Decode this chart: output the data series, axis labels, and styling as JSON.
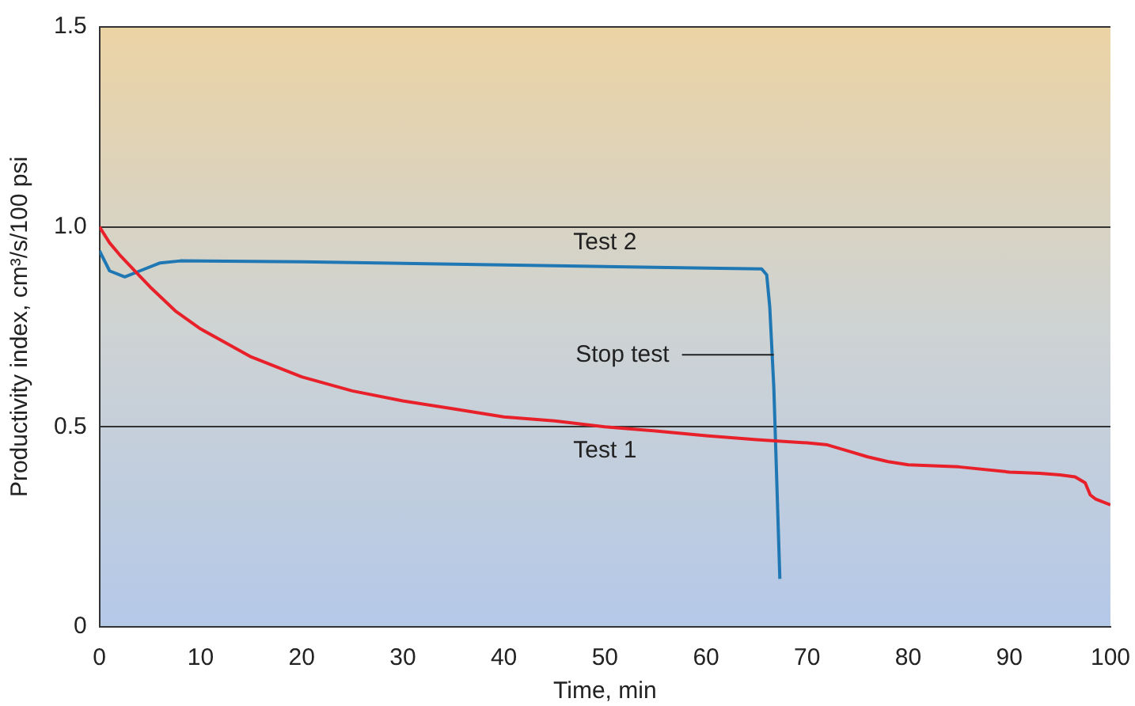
{
  "chart_data": {
    "type": "line",
    "xlabel": "Time, min",
    "ylabel": "Productivity index, cm³/s/100 psi",
    "xlim": [
      0,
      100
    ],
    "xticks": [
      0,
      10,
      20,
      30,
      40,
      50,
      60,
      70,
      80,
      90,
      100
    ],
    "ylim": [
      0,
      1.5
    ],
    "yticks": [
      0,
      {
        "value": 0.5,
        "label": "0.5"
      },
      {
        "value": 1,
        "label": "1.0"
      },
      {
        "value": 1.5,
        "label": "1.5"
      }
    ],
    "grid": "y",
    "legend": false,
    "marker": "none",
    "line_style": "solid",
    "series": [
      {
        "name": "Test 1",
        "color": "#e8202a",
        "x": [
          0,
          1,
          2,
          3.5,
          5,
          7.5,
          10,
          12.5,
          15,
          20,
          25,
          30,
          35,
          40,
          45,
          50,
          55,
          60,
          65,
          68,
          70,
          72,
          74,
          76,
          78,
          80,
          85,
          90,
          93,
          95,
          96.5,
          97.5,
          98,
          98.5,
          100
        ],
        "values": [
          1.0,
          0.96,
          0.93,
          0.89,
          0.85,
          0.79,
          0.745,
          0.71,
          0.675,
          0.625,
          0.59,
          0.565,
          0.545,
          0.525,
          0.515,
          0.5,
          0.49,
          0.478,
          0.468,
          0.463,
          0.46,
          0.455,
          0.44,
          0.425,
          0.413,
          0.405,
          0.4,
          0.387,
          0.384,
          0.38,
          0.375,
          0.36,
          0.33,
          0.32,
          0.305
        ]
      },
      {
        "name": "Test 2",
        "color": "#1f77b4",
        "x": [
          0,
          1,
          2.5,
          4,
          6,
          8,
          20,
          40,
          60,
          65.5,
          66,
          66.3,
          66.7,
          67.3
        ],
        "values": [
          0.94,
          0.89,
          0.875,
          0.89,
          0.91,
          0.915,
          0.913,
          0.905,
          0.897,
          0.895,
          0.88,
          0.8,
          0.6,
          0.12
        ]
      }
    ],
    "annotations": [
      {
        "text": "Stop test",
        "x": 66.7,
        "y": 0.68
      }
    ]
  }
}
